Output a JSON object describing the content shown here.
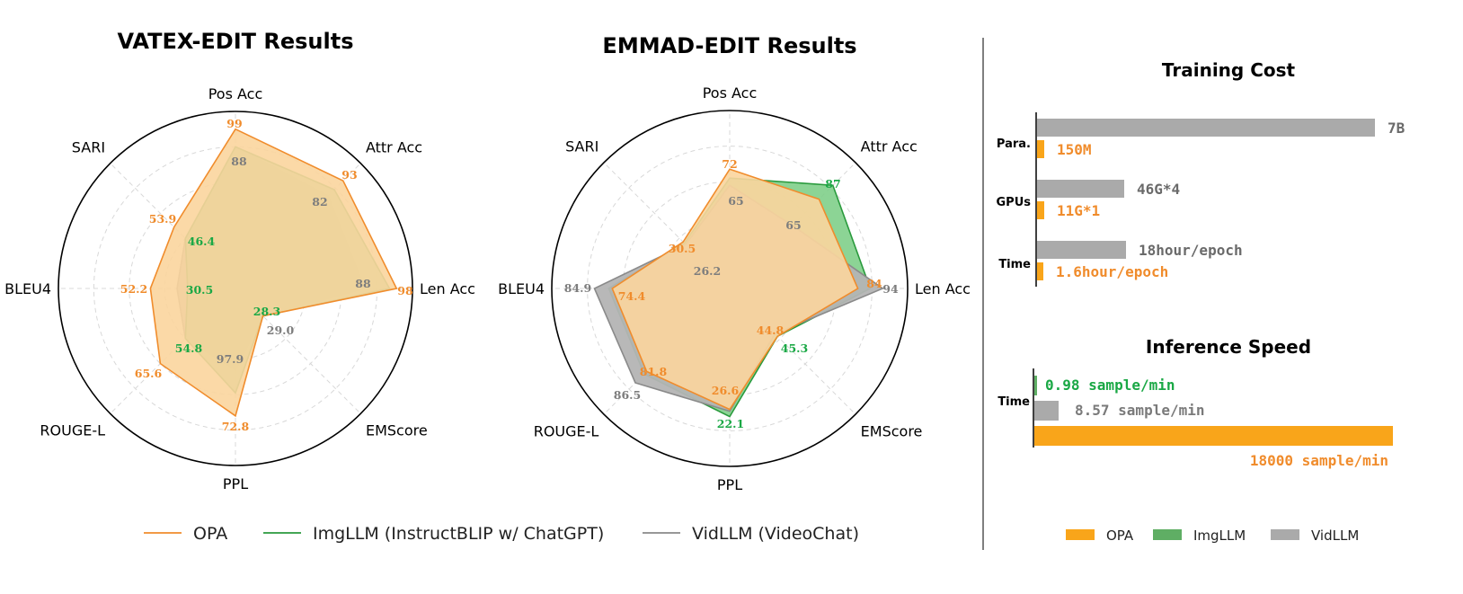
{
  "colors": {
    "opa": "#f08c2c",
    "opa_fill": "#fbd59d",
    "img": "#2a9a3d",
    "img_fill": "#7fcf8a",
    "vid": "#8a8a8a",
    "vid_fill": "#b4b4b4",
    "bar_orange": "#f9a51a",
    "bar_green": "#5fae64",
    "bar_gray": "#aaaaaa",
    "val_green": "#1aa845"
  },
  "chart_data": [
    {
      "type": "radar",
      "title": "VATEX-EDIT Results",
      "axes": [
        "Pos Acc",
        "Attr Acc",
        "Len Acc",
        "EMScore",
        "PPL",
        "ROUGE-L",
        "BLEU4",
        "SARI"
      ],
      "series": [
        {
          "name": "OPA",
          "labels": [
            "99",
            "93",
            "98",
            "",
            "72.8",
            "65.6",
            "52.2",
            "53.9"
          ]
        },
        {
          "name": "ImgLLM (InstructBLIP w/ ChatGPT)",
          "labels": [
            "",
            "",
            "",
            "28.3",
            "",
            "54.8",
            "30.5",
            "46.4"
          ]
        },
        {
          "name": "VidLLM (VideoChat)",
          "labels": [
            "88",
            "82",
            "88",
            "29.0",
            "97.9",
            "",
            "",
            ""
          ]
        }
      ]
    },
    {
      "type": "radar",
      "title": "EMMAD-EDIT Results",
      "axes": [
        "Pos Acc",
        "Attr Acc",
        "Len Acc",
        "EMScore",
        "PPL",
        "ROUGE-L",
        "BLEU4",
        "SARI"
      ],
      "series": [
        {
          "name": "OPA",
          "labels": [
            "72",
            "",
            "84",
            "44.8",
            "26.6",
            "81.8",
            "74.4",
            "30.5"
          ]
        },
        {
          "name": "ImgLLM (InstructBLIP w/ ChatGPT)",
          "labels": [
            "",
            "87",
            "",
            "45.3",
            "22.1",
            "",
            "",
            ""
          ]
        },
        {
          "name": "VidLLM (VideoChat)",
          "labels": [
            "65",
            "65",
            "94",
            "",
            "",
            "86.5",
            "84.9",
            "26.2"
          ]
        }
      ]
    },
    {
      "type": "bar",
      "orientation": "horizontal",
      "title": "Training Cost",
      "groups": [
        {
          "label": "Para.",
          "bars": [
            {
              "series": "VidLLM",
              "label": "7B",
              "value": 7000
            },
            {
              "series": "OPA",
              "label": "150M",
              "value": 150
            }
          ]
        },
        {
          "label": "GPUs",
          "bars": [
            {
              "series": "VidLLM",
              "label": "46G*4",
              "value": 184
            },
            {
              "series": "OPA",
              "label": "11G*1",
              "value": 11
            }
          ]
        },
        {
          "label": "Time",
          "bars": [
            {
              "series": "VidLLM",
              "label": "18hour/epoch",
              "value": 18
            },
            {
              "series": "OPA",
              "label": "1.6hour/epoch",
              "value": 1.6
            }
          ]
        }
      ]
    },
    {
      "type": "bar",
      "orientation": "horizontal",
      "title": "Inference Speed",
      "groups": [
        {
          "label": "Time",
          "bars": [
            {
              "series": "ImgLLM",
              "label": "0.98 sample/min",
              "value": 0.98
            },
            {
              "series": "VidLLM",
              "label": "8.57 sample/min",
              "value": 8.57
            },
            {
              "series": "OPA",
              "label": "18000 sample/min",
              "value": 18000
            }
          ]
        }
      ]
    }
  ],
  "legend_main": [
    "OPA",
    "ImgLLM (InstructBLIP w/ ChatGPT)",
    "VidLLM (VideoChat)"
  ],
  "legend_bars": [
    "OPA",
    "ImgLLM",
    "VidLLM"
  ]
}
